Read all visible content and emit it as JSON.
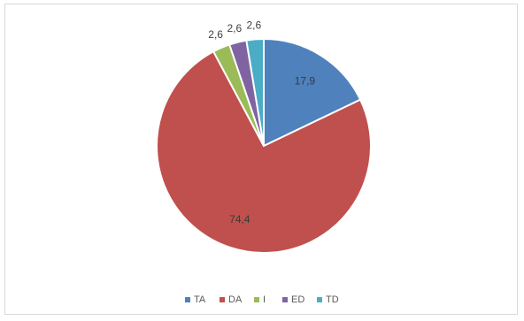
{
  "chart_data": {
    "type": "pie",
    "title": "",
    "slices": [
      {
        "label": "TA",
        "value": 17.9,
        "display": "17,9",
        "color": "#4f81bd"
      },
      {
        "label": "DA",
        "value": 74.4,
        "display": "74,4",
        "color": "#c0504d"
      },
      {
        "label": "I",
        "value": 2.6,
        "display": "2,6",
        "color": "#9bbb59"
      },
      {
        "label": "ED",
        "value": 2.6,
        "display": "2,6",
        "color": "#8064a2"
      },
      {
        "label": "TD",
        "value": 2.6,
        "display": "2,6",
        "color": "#4bacc6"
      }
    ],
    "legend_position": "bottom",
    "start_angle_deg": 0,
    "direction": "clockwise"
  }
}
